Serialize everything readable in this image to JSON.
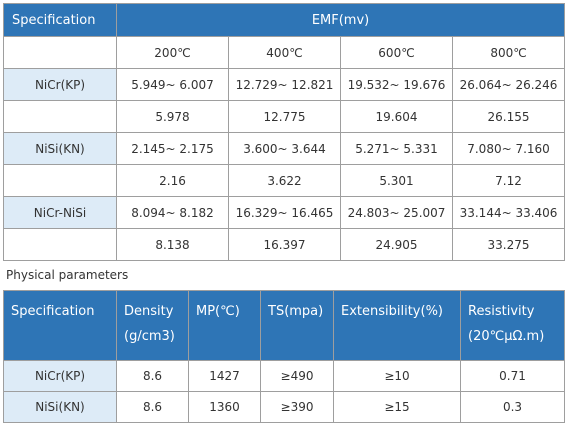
{
  "emf_table": {
    "header_spec": "Specification",
    "header_emf": "EMF(mv)",
    "temps": [
      "200℃",
      "400℃",
      "600℃",
      "800℃"
    ],
    "groups": [
      {
        "name": "NiCr(KP)",
        "range": [
          "5.949~ 6.007",
          "12.729~ 12.821",
          "19.532~ 19.676",
          "26.064~ 26.246"
        ],
        "nominal": [
          "5.978",
          "12.775",
          "19.604",
          "26.155"
        ]
      },
      {
        "name": "NiSi(KN)",
        "range": [
          "2.145~ 2.175",
          "3.600~ 3.644",
          "5.271~ 5.331",
          "7.080~ 7.160"
        ],
        "nominal": [
          "2.16",
          "3.622",
          "5.301",
          "7.12"
        ]
      },
      {
        "name": "NiCr-NiSi",
        "range": [
          "8.094~ 8.182",
          "16.329~ 16.465",
          "24.803~ 25.007",
          "33.144~ 33.406"
        ],
        "nominal": [
          "8.138",
          "16.397",
          "24.905",
          "33.275"
        ]
      }
    ]
  },
  "phys_caption": "Physical parameters",
  "phys_table": {
    "headers": [
      {
        "l1": "Specification",
        "l2": ""
      },
      {
        "l1": "Density",
        "l2": "(g/cm3)"
      },
      {
        "l1": "MP(℃)",
        "l2": ""
      },
      {
        "l1": "TS(mpa)",
        "l2": ""
      },
      {
        "l1": "Extensibility(%)",
        "l2": ""
      },
      {
        "l1": "Resistivity",
        "l2": "(20℃μΩ.m)"
      }
    ],
    "rows": [
      [
        "NiCr(KP)",
        "8.6",
        "1427",
        "≥490",
        "≥10",
        "0.71"
      ],
      [
        "NiSi(KN)",
        "8.6",
        "1360",
        "≥390",
        "≥15",
        "0.3"
      ]
    ]
  }
}
